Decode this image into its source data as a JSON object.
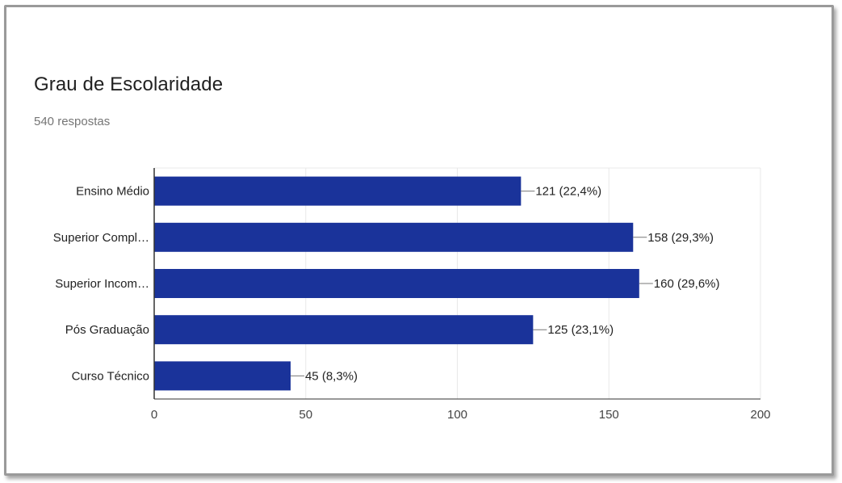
{
  "title": "Grau de Escolaridade",
  "subtitle": "540 respostas",
  "chart_data": {
    "type": "bar",
    "orientation": "horizontal",
    "categories": [
      "Ensino Médio",
      "Superior Compl…",
      "Superior Incom…",
      "Pós Graduação",
      "Curso Técnico"
    ],
    "values": [
      121,
      158,
      160,
      125,
      45
    ],
    "data_labels": [
      "121 (22,4%)",
      "158 (29,3%)",
      "160 (29,6%)",
      "125 (23,1%)",
      "45 (8,3%)"
    ],
    "xlim": [
      0,
      200
    ],
    "xticks": [
      "0",
      "50",
      "100",
      "150",
      "200"
    ],
    "grid": true,
    "bar_color": "#1a339a"
  }
}
